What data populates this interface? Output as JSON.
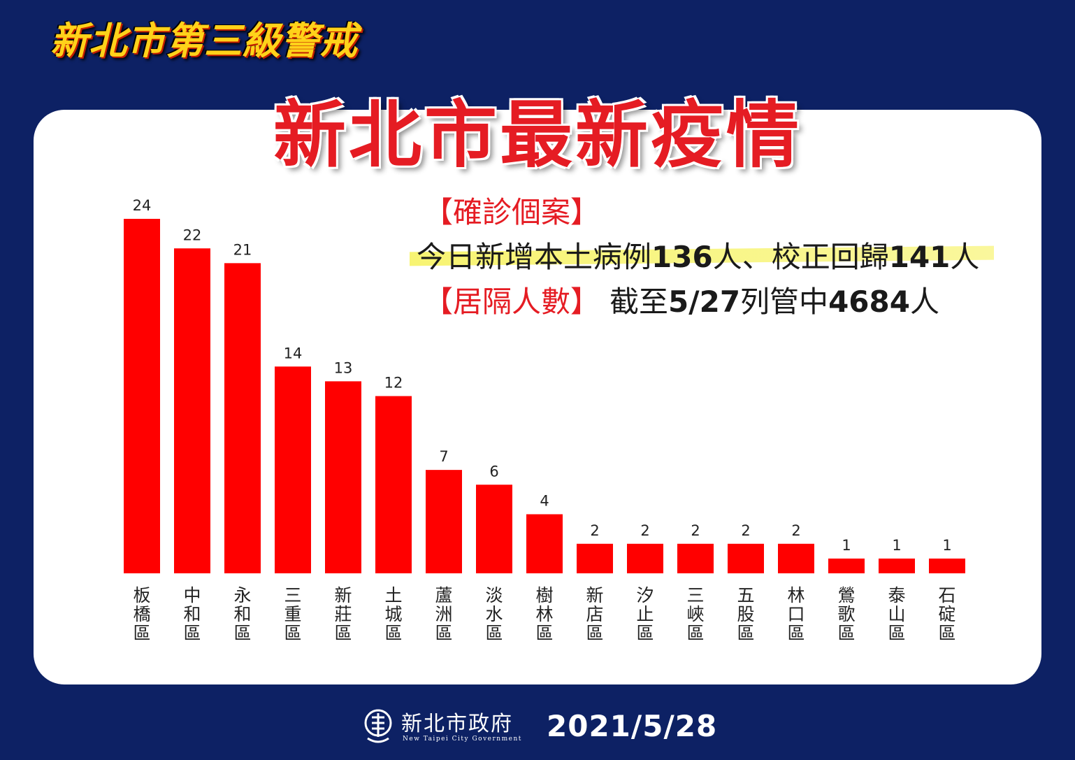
{
  "header": {
    "banner": "新北市第三級警戒",
    "title": "新北市最新疫情"
  },
  "info": {
    "confirmed_label": "【確診個案】",
    "line2_prefix": "今日新增本土病例",
    "new_local_cases": "136",
    "line2_unit": "人",
    "line2_sep": "、校正回歸",
    "backlog_cases": "141",
    "line2_suffix": "人",
    "quarantine_label": "【居隔人數】",
    "line3_prefix": "截至",
    "as_of_date": "5/27",
    "line3_mid": "列管中",
    "quarantine_count": "4684",
    "line3_suffix": "人"
  },
  "chart_data": {
    "type": "bar",
    "categories": [
      "板橋區",
      "中和區",
      "永和區",
      "三重區",
      "新莊區",
      "土城區",
      "蘆洲區",
      "淡水區",
      "樹林區",
      "新店區",
      "汐止區",
      "三峽區",
      "五股區",
      "林口區",
      "鶯歌區",
      "泰山區",
      "石碇區"
    ],
    "values": [
      24,
      22,
      21,
      14,
      13,
      12,
      7,
      6,
      4,
      2,
      2,
      2,
      2,
      2,
      1,
      1,
      1
    ],
    "bar_color": "#ff0000",
    "data_labels": true,
    "ylim": [
      0,
      24
    ],
    "grid": false,
    "xlabel": "",
    "ylabel": ""
  },
  "footer": {
    "org_name": "新北市政府",
    "org_name_en": "New Taipei City Government",
    "date": "2021/5/28",
    "logo_icon": "new-taipei-city-logo-icon"
  },
  "colors": {
    "background": "#0d2164",
    "card": "#ffffff",
    "title_red": "#e51c23",
    "banner_yellow": "#ffd21a",
    "highlight_yellow": "#f6f25a"
  }
}
